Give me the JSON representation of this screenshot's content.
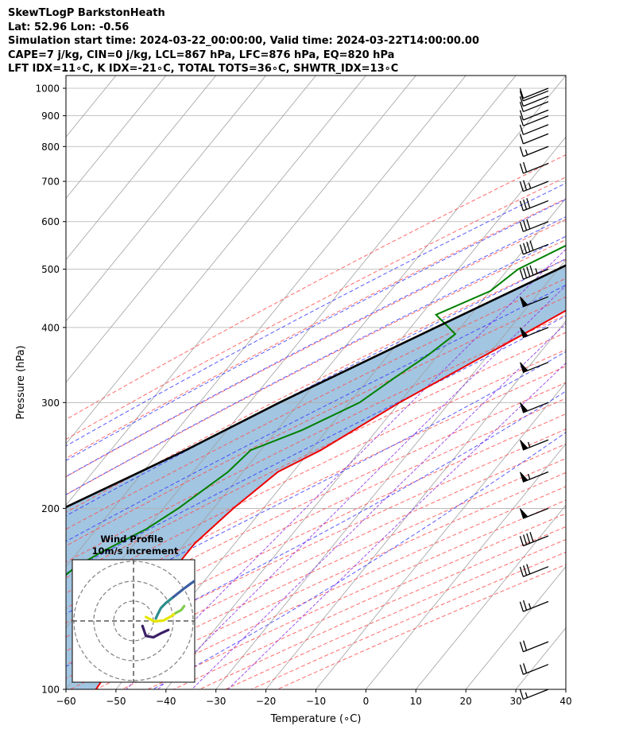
{
  "header": {
    "line1": "SkewTLogP BarkstonHeath",
    "line2": "Lat: 52.96   Lon: -0.56",
    "line3": "Simulation start time: 2024-03-22_00:00:00, Valid time: 2024-03-22T14:00:00.00",
    "line4": "CAPE=7 j/kg, CIN=0 j/kg, LCL=867 hPa, LFC=876 hPa, EQ=820 hPa",
    "line5": "LFT IDX=11∘C, K IDX=-21∘C, TOTAL TOTS=36∘C, SHWTR_IDX=13∘C"
  },
  "chart_data": {
    "type": "line",
    "subtype": "skew-T log-p",
    "xlabel": "Temperature (∘C)",
    "ylabel": "Pressure (hPa)",
    "xlim": [
      -60,
      40
    ],
    "ylim": [
      1050,
      100
    ],
    "y_scale": "log",
    "x_ticks": [
      "−60",
      "−50",
      "−40",
      "−30",
      "−20",
      "−10",
      "0",
      "10",
      "20",
      "30",
      "40"
    ],
    "y_ticks": [
      "100",
      "200",
      "300",
      "400",
      "500",
      "600",
      "700",
      "800",
      "900",
      "1000"
    ],
    "grid": true,
    "colors": {
      "temperature": "#ee0000",
      "dewpoint": "#008000",
      "parcel": "#000000",
      "cape_fill": "#a2c5e1",
      "dry_adiabat": "#ff5050",
      "moist_adiabat": "#3030ff",
      "mixing_ratio": "#8a2be2",
      "isotherm": "#a0a0a0"
    },
    "series": [
      {
        "role": "temperature",
        "points": [
          [
            1000,
            10
          ],
          [
            950,
            6
          ],
          [
            900,
            3
          ],
          [
            870,
            2
          ],
          [
            850,
            1.5
          ],
          [
            800,
            0
          ],
          [
            750,
            -1
          ],
          [
            700,
            -3
          ],
          [
            650,
            -5
          ],
          [
            600,
            -8
          ],
          [
            550,
            -11
          ],
          [
            500,
            -14
          ],
          [
            450,
            -19
          ],
          [
            400,
            -25
          ],
          [
            350,
            -32
          ],
          [
            300,
            -40
          ],
          [
            250,
            -48
          ],
          [
            230,
            -53
          ],
          [
            200,
            -56
          ],
          [
            175,
            -58
          ],
          [
            150,
            -58
          ],
          [
            130,
            -56
          ],
          [
            115,
            -55
          ],
          [
            100,
            -54
          ]
        ]
      },
      {
        "role": "dewpoint",
        "points": [
          [
            1000,
            0.5
          ],
          [
            950,
            1
          ],
          [
            900,
            1
          ],
          [
            860,
            0
          ],
          [
            800,
            -7
          ],
          [
            750,
            -20
          ],
          [
            720,
            -30
          ],
          [
            700,
            -31
          ],
          [
            650,
            -28
          ],
          [
            600,
            -30
          ],
          [
            550,
            -32
          ],
          [
            500,
            -38
          ],
          [
            460,
            -40
          ],
          [
            420,
            -47
          ],
          [
            390,
            -40
          ],
          [
            360,
            -42
          ],
          [
            330,
            -45
          ],
          [
            300,
            -48
          ],
          [
            270,
            -55
          ],
          [
            250,
            -62
          ],
          [
            230,
            -63
          ],
          [
            200,
            -67
          ],
          [
            185,
            -70
          ],
          [
            170,
            -75
          ],
          [
            160,
            -78
          ],
          [
            145,
            -80
          ],
          [
            125,
            -77
          ],
          [
            110,
            -73
          ],
          [
            100,
            -70
          ]
        ]
      },
      {
        "role": "parcel",
        "points": [
          [
            1000,
            10
          ],
          [
            950,
            6.2
          ],
          [
            900,
            3
          ],
          [
            867,
            1.6
          ],
          [
            850,
            0.6
          ],
          [
            800,
            -2.4
          ],
          [
            700,
            -9.5
          ],
          [
            600,
            -18.5
          ],
          [
            500,
            -30
          ],
          [
            400,
            -45
          ],
          [
            300,
            -64
          ],
          [
            250,
            -75
          ],
          [
            200,
            -90
          ],
          [
            150,
            -106
          ],
          [
            100,
            -130
          ]
        ]
      }
    ],
    "wind_barbs": {
      "pressures": [
        1000,
        990,
        970,
        950,
        920,
        900,
        870,
        840,
        800,
        750,
        700,
        650,
        600,
        550,
        500,
        450,
        400,
        350,
        300,
        260,
        230,
        200,
        180,
        160,
        140,
        120,
        110,
        100
      ],
      "speeds_kt": [
        10,
        10,
        10,
        10,
        10,
        10,
        10,
        10,
        15,
        20,
        25,
        30,
        30,
        40,
        45,
        50,
        50,
        50,
        50,
        55,
        55,
        50,
        40,
        30,
        25,
        20,
        20,
        15
      ],
      "barb_x_value": 36.5
    },
    "inset": {
      "title": "Wind Profile",
      "subtitle": "10m/s increment",
      "rings": 3,
      "hodograph_segments": [
        {
          "color": "#e5e600",
          "points": [
            [
              2.5,
              0.8
            ],
            [
              4.2,
              -0.1
            ],
            [
              6,
              0.1
            ],
            [
              7.5,
              0.9
            ],
            [
              8.5,
              1.6
            ]
          ]
        },
        {
          "color": "#7fcc4d",
          "points": [
            [
              8.5,
              1.6
            ],
            [
              9.6,
              2.2
            ],
            [
              10.2,
              3.0
            ]
          ]
        },
        {
          "color": "#2a8c8c",
          "points": [
            [
              4.5,
              0.5
            ],
            [
              4.8,
              1.2
            ],
            [
              5.5,
              2.6
            ],
            [
              6.5,
              3.6
            ],
            [
              8,
              4.8
            ]
          ]
        },
        {
          "color": "#3b5fa0",
          "points": [
            [
              8,
              4.8
            ],
            [
              10,
              6.4
            ],
            [
              11.5,
              7.5
            ],
            [
              12.5,
              8.2
            ]
          ]
        },
        {
          "color": "#3a1f66",
          "points": [
            [
              1.8,
              -1
            ],
            [
              2.5,
              -3
            ],
            [
              4,
              -3.3
            ],
            [
              5.5,
              -2.5
            ],
            [
              7,
              -1.8
            ]
          ]
        }
      ]
    }
  }
}
